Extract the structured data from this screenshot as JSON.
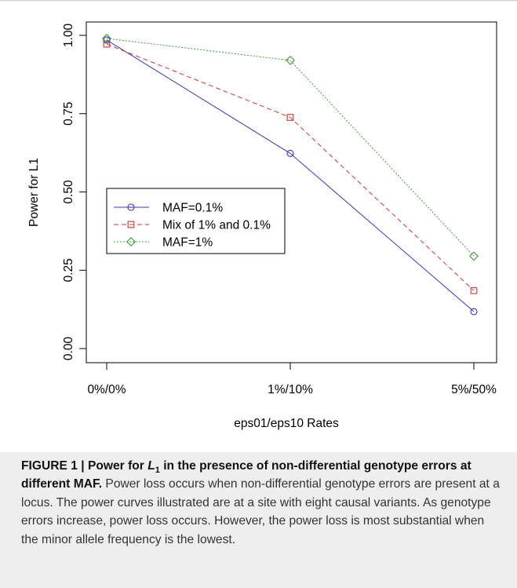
{
  "caption": {
    "figure_label": "FIGURE 1 | Power for ",
    "symbol_main": "L",
    "symbol_sub": "1",
    "title_rest": " in the presence of non-differential genotype errors at different MAF.",
    "body": " Power loss occurs when non-differential genotype errors are present at a locus. The power curves illustrated are at a site with eight causal variants. As genotype errors increase, power loss occurs. However, the power loss is most substantial when the minor allele frequency is the lowest."
  },
  "chart_data": {
    "type": "line",
    "categories": [
      "0%/0%",
      "1%/10%",
      "5%/50%"
    ],
    "xlabel": "eps01/eps10 Rates",
    "ylabel": "Power for L1",
    "ylim": [
      0,
      1
    ],
    "yticks": [
      "0.00",
      "0.25",
      "0.50",
      "0.75",
      "1.00"
    ],
    "legend_position": "middle-left",
    "series": [
      {
        "name": "MAF=0.1%",
        "values": [
          0.985,
          0.623,
          0.118
        ],
        "color": "#3333bb",
        "marker": "circle",
        "dash": "solid"
      },
      {
        "name": "Mix of 1% and 0.1%",
        "values": [
          0.972,
          0.738,
          0.185
        ],
        "color": "#cc3333",
        "marker": "square",
        "dash": "dashed"
      },
      {
        "name": "MAF=1%",
        "values": [
          0.99,
          0.92,
          0.295
        ],
        "color": "#3c9a3c",
        "marker": "diamond",
        "dash": "dotted"
      }
    ]
  }
}
